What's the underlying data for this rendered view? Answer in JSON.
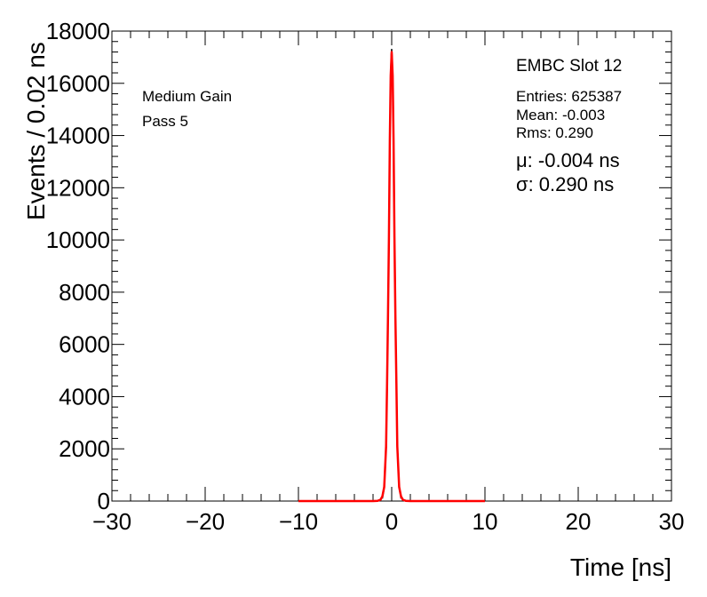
{
  "chart_data": {
    "type": "line",
    "xlabel": "Time [ns]",
    "ylabel": "Events / 0.02 ns",
    "xlim": [
      -30,
      30
    ],
    "ylim": [
      0,
      18000
    ],
    "x_ticks": [
      "−30",
      "−20",
      "−10",
      "0",
      "10",
      "20",
      "30"
    ],
    "x_tick_values": [
      -30,
      -20,
      -10,
      0,
      10,
      20,
      30
    ],
    "y_ticks": [
      "0",
      "2000",
      "4000",
      "6000",
      "8000",
      "10000",
      "12000",
      "14000",
      "16000",
      "18000"
    ],
    "y_tick_values": [
      0,
      2000,
      4000,
      6000,
      8000,
      10000,
      12000,
      14000,
      16000,
      18000
    ],
    "grid": false,
    "series": [
      {
        "color": "#000000",
        "x": [
          -1.0,
          -0.8,
          -0.6,
          -0.5,
          -0.4,
          -0.3,
          -0.2,
          -0.1,
          -0.05,
          0.0,
          0.05,
          0.1,
          0.2,
          0.3,
          0.4,
          0.5,
          0.6,
          0.8,
          1.0
        ],
        "y": [
          100,
          500,
          2100,
          4500,
          7000,
          10200,
          13800,
          16400,
          17100,
          17300,
          17000,
          16200,
          13600,
          10100,
          7000,
          4400,
          2200,
          600,
          100
        ]
      },
      {
        "color": "#ff0000",
        "x": [
          -10,
          -2.0,
          -1.5,
          -1.2,
          -1.0,
          -0.8,
          -0.6,
          -0.5,
          -0.4,
          -0.3,
          -0.2,
          -0.1,
          0.0,
          0.1,
          0.2,
          0.3,
          0.4,
          0.5,
          0.6,
          0.8,
          1.0,
          1.2,
          1.5,
          2.0,
          10
        ],
        "y": [
          0,
          0,
          10,
          50,
          180,
          540,
          2100,
          4500,
          7000,
          10100,
          13800,
          16300,
          17200,
          16300,
          13800,
          10100,
          7000,
          4500,
          2100,
          540,
          180,
          50,
          10,
          0,
          0
        ]
      }
    ],
    "annotations": {
      "gain": "Medium Gain",
      "pass": "Pass 5",
      "slot": "EMBC Slot 12",
      "entries": "Entries: 625387",
      "mean": "Mean: -0.003",
      "rms": "Rms: 0.290",
      "mu": "μ: -0.004 ns",
      "sigma": "σ: 0.290 ns"
    }
  }
}
